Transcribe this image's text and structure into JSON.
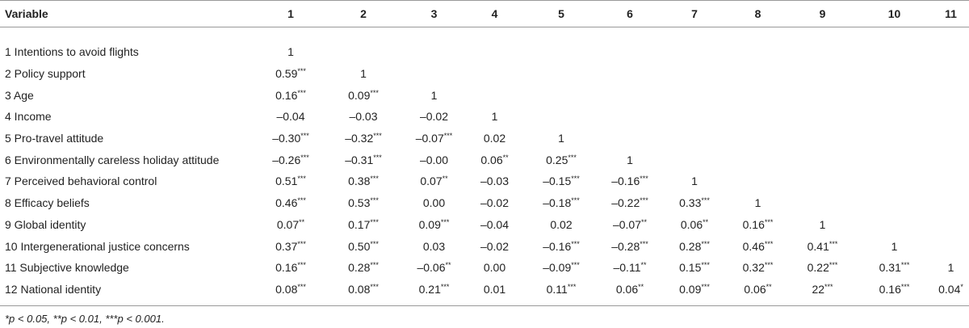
{
  "table": {
    "header": [
      "Variable",
      "1",
      "2",
      "3",
      "4",
      "5",
      "6",
      "7",
      "8",
      "9",
      "10",
      "11"
    ],
    "rows": [
      {
        "label": "1 Intentions to avoid flights",
        "cells": [
          {
            "v": "1"
          }
        ]
      },
      {
        "label": "2 Policy support",
        "cells": [
          {
            "v": "0.59",
            "s": "***"
          },
          {
            "v": "1"
          }
        ]
      },
      {
        "label": "3 Age",
        "cells": [
          {
            "v": "0.16",
            "s": "***"
          },
          {
            "v": "0.09",
            "s": "***"
          },
          {
            "v": "1"
          }
        ]
      },
      {
        "label": "4 Income",
        "cells": [
          {
            "v": "–0.04"
          },
          {
            "v": "–0.03"
          },
          {
            "v": "–0.02"
          },
          {
            "v": "1"
          }
        ]
      },
      {
        "label": "5 Pro-travel attitude",
        "cells": [
          {
            "v": "–0.30",
            "s": "***"
          },
          {
            "v": "–0.32",
            "s": "***"
          },
          {
            "v": "–0.07",
            "s": "***"
          },
          {
            "v": "0.02"
          },
          {
            "v": "1"
          }
        ]
      },
      {
        "label": "6 Environmentally careless holiday attitude",
        "cells": [
          {
            "v": "–0.26",
            "s": "***"
          },
          {
            "v": "–0.31",
            "s": "***"
          },
          {
            "v": "–0.00"
          },
          {
            "v": "0.06",
            "s": "**"
          },
          {
            "v": "0.25",
            "s": "***"
          },
          {
            "v": "1"
          }
        ]
      },
      {
        "label": "7 Perceived behavioral control",
        "cells": [
          {
            "v": "0.51",
            "s": "***"
          },
          {
            "v": "0.38",
            "s": "***"
          },
          {
            "v": "0.07",
            "s": "**"
          },
          {
            "v": "–0.03"
          },
          {
            "v": "–0.15",
            "s": "***"
          },
          {
            "v": "–0.16",
            "s": "***"
          },
          {
            "v": "1"
          }
        ]
      },
      {
        "label": "8 Efficacy beliefs",
        "cells": [
          {
            "v": "0.46",
            "s": "***"
          },
          {
            "v": "0.53",
            "s": "***"
          },
          {
            "v": "0.00"
          },
          {
            "v": "–0.02"
          },
          {
            "v": "–0.18",
            "s": "***"
          },
          {
            "v": "–0.22",
            "s": "***"
          },
          {
            "v": "0.33",
            "s": "***"
          },
          {
            "v": "1"
          }
        ]
      },
      {
        "label": "9 Global identity",
        "cells": [
          {
            "v": "0.07",
            "s": "**"
          },
          {
            "v": "0.17",
            "s": "***"
          },
          {
            "v": "0.09",
            "s": "***"
          },
          {
            "v": "–0.04"
          },
          {
            "v": "0.02"
          },
          {
            "v": "–0.07",
            "s": "**"
          },
          {
            "v": "0.06",
            "s": "**"
          },
          {
            "v": "0.16",
            "s": "***"
          },
          {
            "v": "1"
          }
        ]
      },
      {
        "label": "10 Intergenerational justice concerns",
        "cells": [
          {
            "v": "0.37",
            "s": "***"
          },
          {
            "v": "0.50",
            "s": "***"
          },
          {
            "v": "0.03"
          },
          {
            "v": "–0.02"
          },
          {
            "v": "–0.16",
            "s": "***"
          },
          {
            "v": "–0.28",
            "s": "***"
          },
          {
            "v": "0.28",
            "s": "***"
          },
          {
            "v": "0.46",
            "s": "***"
          },
          {
            "v": "0.41",
            "s": "***"
          },
          {
            "v": "1"
          }
        ]
      },
      {
        "label": "11 Subjective knowledge",
        "cells": [
          {
            "v": "0.16",
            "s": "***"
          },
          {
            "v": "0.28",
            "s": "***"
          },
          {
            "v": "–0.06",
            "s": "**"
          },
          {
            "v": "0.00"
          },
          {
            "v": "–0.09",
            "s": "***"
          },
          {
            "v": "–0.11",
            "s": "**"
          },
          {
            "v": "0.15",
            "s": "***"
          },
          {
            "v": "0.32",
            "s": "***"
          },
          {
            "v": "0.22",
            "s": "***"
          },
          {
            "v": "0.31",
            "s": "***"
          },
          {
            "v": "1"
          }
        ]
      },
      {
        "label": "12 National identity",
        "cells": [
          {
            "v": "0.08",
            "s": "***"
          },
          {
            "v": "0.08",
            "s": "***"
          },
          {
            "v": "0.21",
            "s": "***"
          },
          {
            "v": "0.01"
          },
          {
            "v": "0.11",
            "s": "***"
          },
          {
            "v": "0.06",
            "s": "**"
          },
          {
            "v": "0.09",
            "s": "***"
          },
          {
            "v": "0.06",
            "s": "**"
          },
          {
            "v": "22",
            "s": "***"
          },
          {
            "v": "0.16",
            "s": "***"
          },
          {
            "v": "0.04",
            "s": "*"
          }
        ]
      }
    ],
    "footnote": "*p < 0.05, **p < 0.01, ***p < 0.001."
  }
}
